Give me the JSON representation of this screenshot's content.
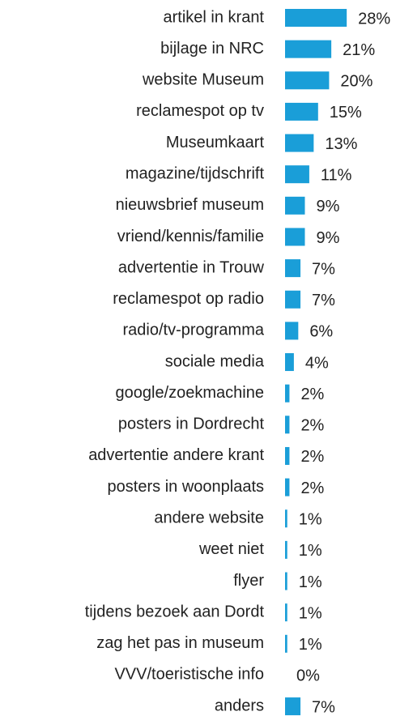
{
  "chart_data": {
    "type": "bar",
    "orientation": "horizontal",
    "color": "#1a9ed8",
    "categories": [
      "artikel in krant",
      "bijlage in NRC",
      "website Museum",
      "reclamespot op tv",
      "Museumkaart",
      "magazine/tijdschrift",
      "nieuwsbrief museum",
      "vriend/kennis/familie",
      "advertentie in Trouw",
      "reclamespot op radio",
      "radio/tv-programma",
      "sociale media",
      "google/zoekmachine",
      "posters in Dordrecht",
      "advertentie andere krant",
      "posters in woonplaats",
      "andere website",
      "weet niet",
      "flyer",
      "tijdens bezoek aan Dordt",
      "zag het pas in museum",
      "VVV/toeristische info",
      "anders"
    ],
    "values": [
      28,
      21,
      20,
      15,
      13,
      11,
      9,
      9,
      7,
      7,
      6,
      4,
      2,
      2,
      2,
      2,
      1,
      1,
      1,
      1,
      1,
      0,
      7
    ],
    "value_labels": [
      "28%",
      "21%",
      "20%",
      "15%",
      "13%",
      "11%",
      "9%",
      "9%",
      "7%",
      "7%",
      "6%",
      "4%",
      "2%",
      "2%",
      "2%",
      "2%",
      "1%",
      "1%",
      "1%",
      "1%",
      "1%",
      "0%",
      "7%"
    ]
  }
}
